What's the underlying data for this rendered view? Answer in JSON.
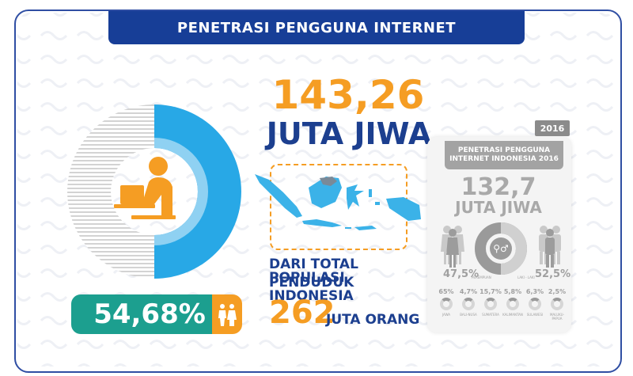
{
  "banner": {
    "title": "PENETRASI PENGGUNA INTERNET"
  },
  "headline": {
    "value": "143,26",
    "unit": "JUTA JIWA"
  },
  "population": {
    "line1": "DARI TOTAL POPULASI",
    "line2": "PENDUDUK INDONESIA",
    "value": "262",
    "unit": "JUTA ORANG"
  },
  "penetration": {
    "percent_label": "54,68%",
    "percent_value": 54.68
  },
  "card_2016": {
    "year_tag": "2016",
    "title_line1": "PENETRASI PENGGUNA",
    "title_line2": "INTERNET INDONESIA 2016",
    "value": "132,7",
    "unit": "JUTA JIWA",
    "female_pct": "47,5%",
    "female_label": "PEREMPUAN",
    "male_pct": "52,5%",
    "male_label": "LAKI - LAKI",
    "regions": [
      {
        "pct": "65%",
        "name": "JAWA"
      },
      {
        "pct": "4,7%",
        "name": "BALI-NUSA"
      },
      {
        "pct": "15,7%",
        "name": "SUMATERA"
      },
      {
        "pct": "5,8%",
        "name": "KALIMANTAN"
      },
      {
        "pct": "6,3%",
        "name": "SULAWESI"
      },
      {
        "pct": "2,5%",
        "name": "MALUKU-PAPUA"
      }
    ]
  },
  "colors": {
    "navy": "#173e97",
    "orange": "#f59d23",
    "teal": "#1c9f8f",
    "blue": "#28a8e6",
    "gray": "#a3a3a3"
  },
  "icons": [
    "laptop-user-icon",
    "people-icon",
    "indonesia-map-icon",
    "gender-icon"
  ]
}
